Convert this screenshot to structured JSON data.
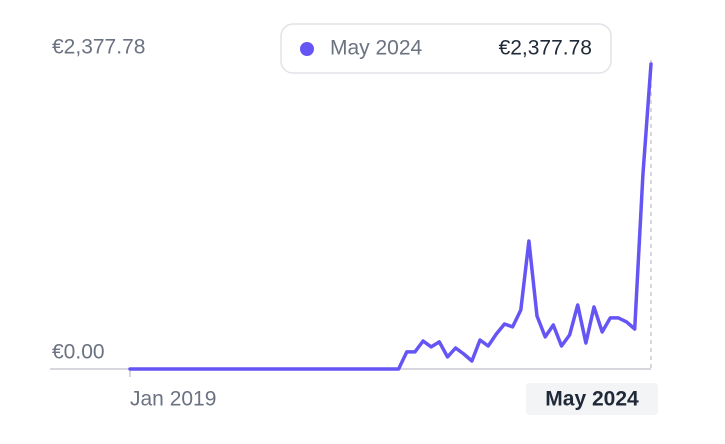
{
  "chart_data": {
    "type": "line",
    "categories": [
      "Jan 2019",
      null,
      null,
      null,
      null,
      null,
      null,
      null,
      null,
      null,
      null,
      null,
      null,
      null,
      null,
      null,
      null,
      null,
      null,
      null,
      null,
      null,
      null,
      null,
      null,
      null,
      null,
      null,
      null,
      null,
      null,
      null,
      null,
      null,
      null,
      null,
      null,
      null,
      null,
      null,
      null,
      null,
      null,
      null,
      null,
      null,
      null,
      null,
      null,
      null,
      null,
      null,
      null,
      null,
      null,
      null,
      null,
      null,
      null,
      null,
      null,
      null,
      null,
      null,
      "May 2024"
    ],
    "series": [
      {
        "color": "#6655f5",
        "values": [
          0,
          0,
          0,
          0,
          0,
          0,
          0,
          0,
          0,
          0,
          0,
          0,
          0,
          0,
          0,
          0,
          0,
          0,
          0,
          0,
          0,
          0,
          0,
          0,
          0,
          0,
          0,
          0,
          0,
          0,
          0,
          0,
          0,
          0,
          133,
          133,
          218,
          172,
          211,
          94,
          164,
          117,
          62,
          226,
          179,
          273,
          351,
          328,
          460,
          998,
          413,
          250,
          343,
          179,
          265,
          499,
          203,
          484,
          289,
          398,
          398,
          367,
          312,
          1513,
          2377.78
        ]
      }
    ],
    "ylim": [
      0,
      2377.78
    ],
    "yticks": [
      {
        "value": 0,
        "label": "€0.00"
      },
      {
        "value": 2377.78,
        "label": "€2,377.78"
      }
    ],
    "tooltip": {
      "category": "May 2024",
      "value_label": "€2,377.78"
    }
  }
}
